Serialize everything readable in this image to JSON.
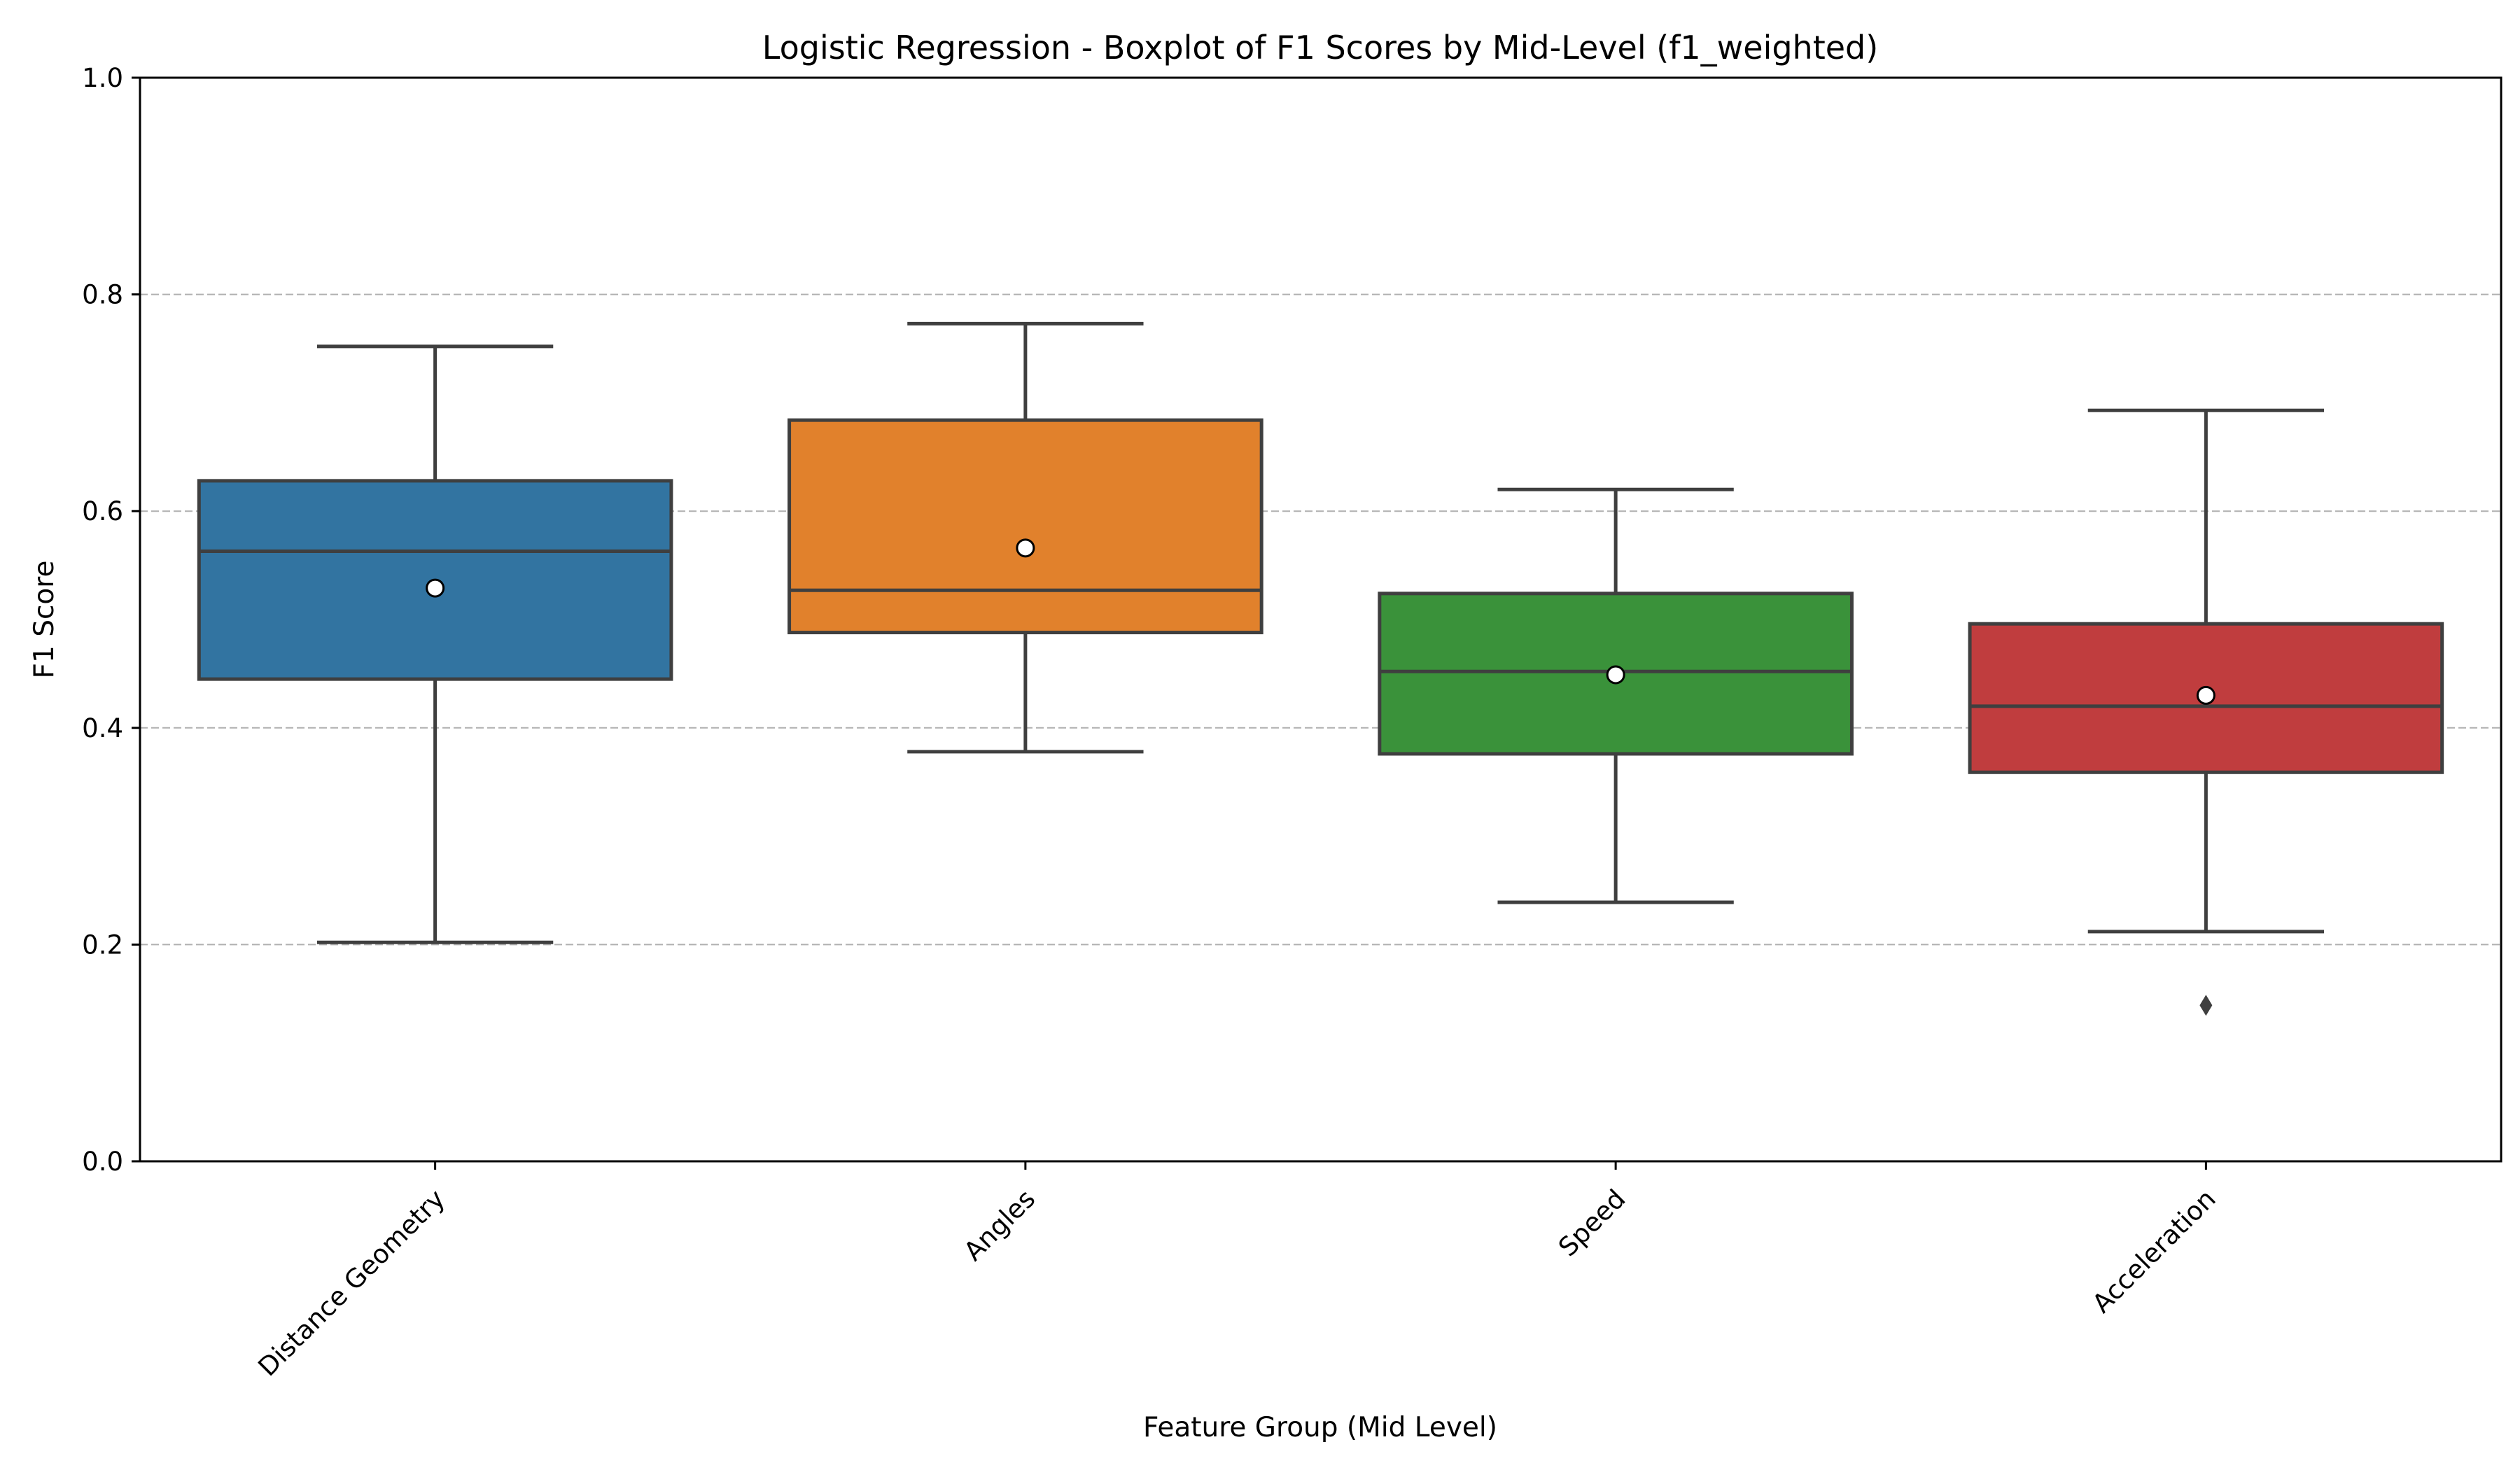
{
  "chart_data": {
    "type": "box",
    "title": "Logistic Regression - Boxplot of F1 Scores by Mid-Level (f1_weighted)",
    "xlabel": "Feature Group (Mid Level)",
    "ylabel": "F1 Score",
    "ylim": [
      0.0,
      1.0
    ],
    "yticks": [
      "0.0",
      "0.2",
      "0.4",
      "0.6",
      "0.8",
      "1.0"
    ],
    "grid": "horizontal dashed",
    "categories": [
      "Distance Geometry",
      "Angles",
      "Speed",
      "Acceleration"
    ],
    "boxes": [
      {
        "category": "Distance Geometry",
        "whisker_low": 0.202,
        "q1": 0.445,
        "median": 0.563,
        "q3": 0.628,
        "whisker_high": 0.752,
        "mean": 0.529,
        "outliers": [],
        "color": "#3274a1"
      },
      {
        "category": "Angles",
        "whisker_low": 0.378,
        "q1": 0.488,
        "median": 0.527,
        "q3": 0.684,
        "whisker_high": 0.773,
        "mean": 0.566,
        "outliers": [],
        "color": "#e1812c"
      },
      {
        "category": "Speed",
        "whisker_low": 0.239,
        "q1": 0.376,
        "median": 0.452,
        "q3": 0.524,
        "whisker_high": 0.62,
        "mean": 0.449,
        "outliers": [],
        "color": "#3a923a"
      },
      {
        "category": "Acceleration",
        "whisker_low": 0.212,
        "q1": 0.359,
        "median": 0.42,
        "q3": 0.496,
        "whisker_high": 0.693,
        "mean": 0.43,
        "outliers": [
          0.144
        ],
        "color": "#c03d3e"
      }
    ]
  }
}
